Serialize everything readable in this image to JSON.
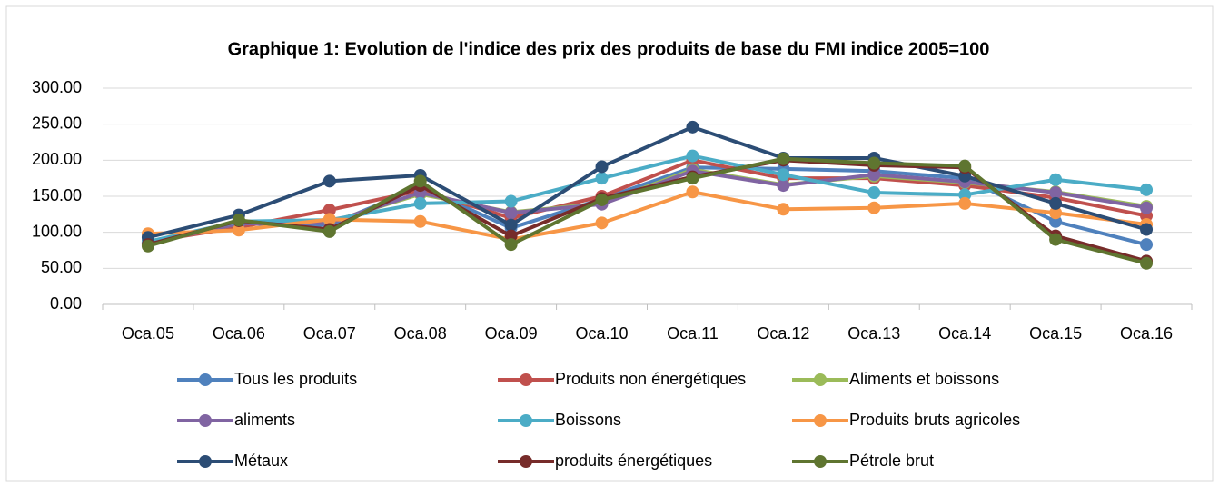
{
  "chart_data": {
    "type": "line",
    "title": "Graphique 1: Evolution de l'indice des prix des produits de base du FMI  indice 2005=100",
    "categories": [
      "Oca.05",
      "Oca.06",
      "Oca.07",
      "Oca.08",
      "Oca.09",
      "Oca.10",
      "Oca.11",
      "Oca.12",
      "Oca.13",
      "Oca.14",
      "Oca.15",
      "Oca.16"
    ],
    "ylim": [
      0,
      300
    ],
    "yticks": [
      {
        "value": 0,
        "label": "0.00"
      },
      {
        "value": 50,
        "label": "50.00"
      },
      {
        "value": 100,
        "label": "100.00"
      },
      {
        "value": 150,
        "label": "150.00"
      },
      {
        "value": 200,
        "label": "200.00"
      },
      {
        "value": 250,
        "label": "250.00"
      },
      {
        "value": 300,
        "label": "300.00"
      }
    ],
    "grid": true,
    "legend": "bottom",
    "series": [
      {
        "name": "Tous les produits",
        "color": "#4f81bd",
        "values": [
          86,
          112,
          110,
          163,
          106,
          146,
          190,
          188,
          185,
          175,
          115,
          83
        ]
      },
      {
        "name": "Produits non énergétiques",
        "color": "#c0504d",
        "values": [
          87,
          107,
          131,
          158,
          120,
          150,
          200,
          175,
          175,
          165,
          148,
          123
        ]
      },
      {
        "name": "Aliments et boissons",
        "color": "#9bbb59",
        "values": [
          85,
          112,
          114,
          153,
          128,
          140,
          187,
          166,
          178,
          169,
          156,
          136
        ]
      },
      {
        "name": "aliments",
        "color": "#8064a2",
        "values": [
          85,
          112,
          113,
          155,
          127,
          139,
          185,
          165,
          180,
          170,
          155,
          134
        ]
      },
      {
        "name": "Boissons",
        "color": "#4bacc6",
        "values": [
          87,
          115,
          117,
          140,
          143,
          175,
          206,
          180,
          155,
          152,
          173,
          159
        ]
      },
      {
        "name": "Produits bruts agricoles",
        "color": "#f79646",
        "values": [
          98,
          103,
          118,
          115,
          90,
          113,
          156,
          132,
          134,
          140,
          127,
          111
        ]
      },
      {
        "name": "Métaux",
        "color": "#2c4d75",
        "values": [
          93,
          124,
          171,
          179,
          110,
          191,
          246,
          203,
          203,
          178,
          140,
          104
        ]
      },
      {
        "name": "produits énergétiques",
        "color": "#772c2a",
        "values": [
          83,
          116,
          104,
          165,
          95,
          147,
          177,
          200,
          193,
          190,
          95,
          60
        ]
      },
      {
        "name": "Pétrole brut",
        "color": "#5f7530",
        "values": [
          81,
          117,
          101,
          171,
          83,
          145,
          175,
          202,
          196,
          192,
          90,
          57
        ]
      }
    ]
  }
}
